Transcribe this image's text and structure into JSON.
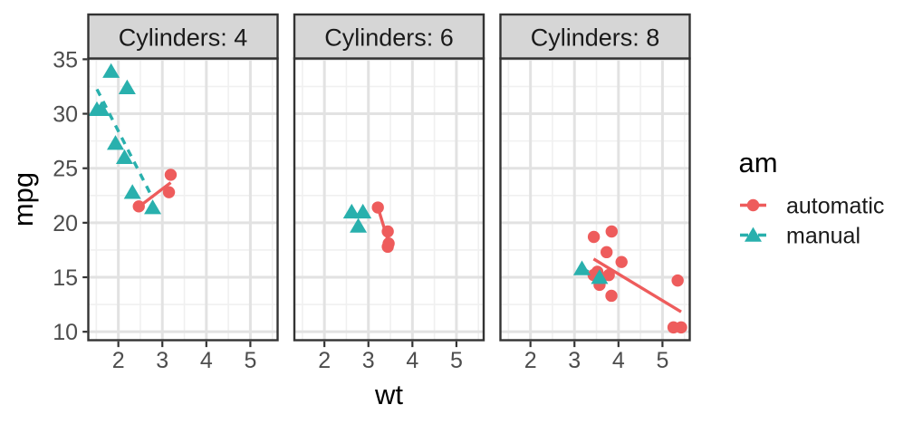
{
  "chart_data": {
    "type": "scatter",
    "xlabel": "wt",
    "ylabel": "mpg",
    "xlim": [
      1.31745,
      5.61955
    ],
    "ylim": [
      9.225,
      35.075
    ],
    "x_ticks": [
      2,
      3,
      4,
      5
    ],
    "x_minor_gridlines": [
      1.5,
      2.5,
      3.5,
      4.5,
      5.5
    ],
    "y_ticks": [
      10,
      15,
      20,
      25,
      30,
      35
    ],
    "y_minor_gridlines": [
      12.5,
      17.5,
      22.5,
      27.5,
      32.5
    ],
    "grid": "major and minor, light grey on white panels",
    "legend": {
      "title": "am",
      "position": "right",
      "items": [
        {
          "label": "automatic",
          "shape": "circle",
          "linetype": "solid",
          "color": "#ee5c5c"
        },
        {
          "label": "manual",
          "shape": "triangle",
          "linetype": "dashed",
          "color": "#29b0ad"
        }
      ]
    },
    "facets": [
      {
        "label": "Cylinders: 4",
        "series": [
          {
            "name": "automatic",
            "shape": "circle",
            "linetype": "solid",
            "points": [
              [
                2.465,
                21.5
              ],
              [
                3.15,
                22.8
              ],
              [
                3.19,
                24.4
              ]
            ],
            "trend": {
              "x1": 2.465,
              "y1": 21.458,
              "x2": 3.19,
              "y2": 23.682
            }
          },
          {
            "name": "manual",
            "shape": "triangle",
            "linetype": "dashed",
            "points": [
              [
                1.513,
                30.4
              ],
              [
                1.615,
                30.4
              ],
              [
                1.835,
                33.9
              ],
              [
                1.935,
                27.3
              ],
              [
                2.14,
                26.0
              ],
              [
                2.2,
                32.4
              ],
              [
                2.32,
                22.8
              ],
              [
                2.78,
                21.4
              ]
            ],
            "trend": {
              "x1": 1.513,
              "y1": 32.252,
              "x2": 2.78,
              "y2": 22.252
            }
          }
        ]
      },
      {
        "label": "Cylinders: 6",
        "series": [
          {
            "name": "automatic",
            "shape": "circle",
            "linetype": "solid",
            "points": [
              [
                3.215,
                21.4
              ],
              [
                3.44,
                19.2
              ],
              [
                3.44,
                17.8
              ],
              [
                3.46,
                18.1
              ]
            ],
            "trend": {
              "x1": 3.215,
              "y1": 21.408,
              "x2": 3.46,
              "y2": 18.189
            }
          },
          {
            "name": "manual",
            "shape": "triangle",
            "linetype": "dashed",
            "points": [
              [
                2.62,
                21.0
              ],
              [
                2.77,
                19.7
              ],
              [
                2.875,
                21.0
              ]
            ],
            "trend": {
              "x1": 2.62,
              "y1": 20.647,
              "x2": 2.875,
              "y2": 20.495
            }
          }
        ]
      },
      {
        "label": "Cylinders: 8",
        "series": [
          {
            "name": "automatic",
            "shape": "circle",
            "linetype": "solid",
            "points": [
              [
                3.435,
                15.2
              ],
              [
                3.44,
                18.7
              ],
              [
                3.52,
                15.5
              ],
              [
                3.57,
                14.3
              ],
              [
                3.73,
                17.3
              ],
              [
                3.78,
                15.2
              ],
              [
                3.84,
                13.3
              ],
              [
                3.845,
                19.2
              ],
              [
                4.07,
                16.4
              ],
              [
                5.25,
                10.4
              ],
              [
                5.345,
                14.7
              ],
              [
                5.424,
                10.4
              ]
            ],
            "trend": {
              "x1": 3.435,
              "y1": 16.682,
              "x2": 5.424,
              "y2": 11.831
            }
          },
          {
            "name": "manual",
            "shape": "triangle",
            "linetype": "dashed",
            "points": [
              [
                3.17,
                15.8
              ],
              [
                3.57,
                15.0
              ]
            ],
            "trend": {
              "x1": 3.17,
              "y1": 15.8,
              "x2": 3.57,
              "y2": 15.0
            }
          }
        ]
      }
    ]
  },
  "colors": {
    "automatic": "#ee5c5c",
    "manual": "#29b0ad",
    "strip_fill": "#d6d6d6",
    "panel_border": "#333333",
    "tick_mark": "#333333",
    "grid_major": "#e2e2e2",
    "grid_minor": "#f0f0f0",
    "axis_text": "#4d4d4d",
    "background": "#ffffff"
  }
}
